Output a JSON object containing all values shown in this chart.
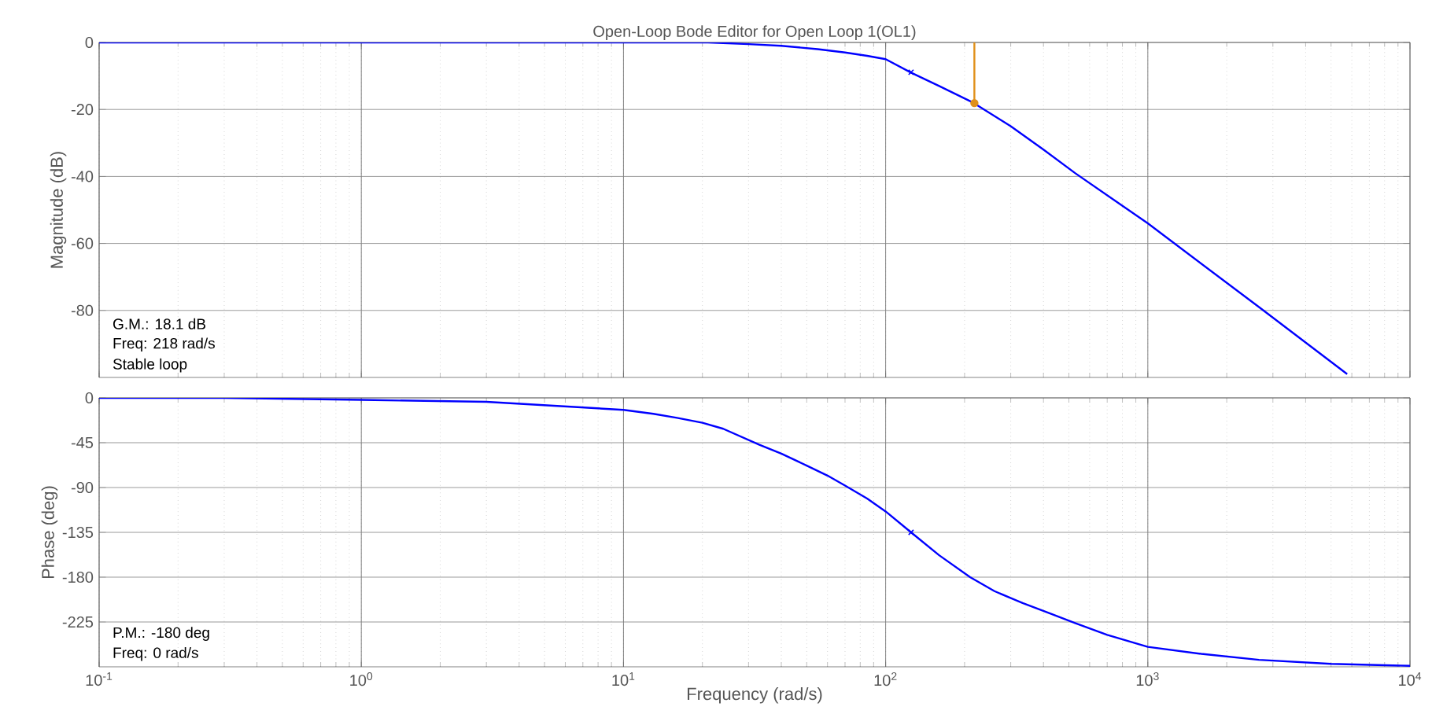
{
  "chart_data": [
    {
      "type": "line",
      "title": "Open-Loop Bode Editor for Open Loop 1(OL1)",
      "ylabel": "Magnitude (dB)",
      "log": "x",
      "grid": true,
      "tick_labels": "y",
      "xlim": [
        0.1,
        10000
      ],
      "ylim": [
        -100,
        0
      ],
      "xticks": [
        {
          "value": 0.1,
          "label": null
        },
        {
          "value": 1,
          "label": null
        },
        {
          "value": 10,
          "label": null
        },
        {
          "value": 100,
          "label": null
        },
        {
          "value": 1000,
          "label": null
        },
        {
          "value": 10000,
          "label": null
        }
      ],
      "yticks": [
        0,
        -20,
        -40,
        -60,
        -80
      ],
      "annotations": [
        "G.M.: 18.1 dB",
        "Freq: 218 rad/s",
        "Stable loop"
      ],
      "series": [
        {
          "color": "#0000ff",
          "x": [
            0.1,
            1,
            5,
            10,
            21,
            30,
            40,
            55,
            70,
            85,
            100,
            125,
            160,
            216,
            300,
            400,
            528,
            1000,
            2655,
            5760
          ],
          "values": [
            0,
            0,
            0,
            0,
            0,
            -0.5,
            -1,
            -2,
            -3,
            -4,
            -5,
            -9,
            -13,
            -18,
            -25,
            -32,
            -39,
            -54,
            -79,
            -99
          ]
        },
        {
          "color": "#e0901a",
          "x": [
            218,
            218
          ],
          "values": [
            0,
            -18.1
          ]
        },
        {
          "type": "scatter",
          "marker": "circle",
          "color": "#e0901a",
          "x": [
            218
          ],
          "values": [
            -18.1
          ]
        },
        {
          "type": "scatter",
          "marker": "cross",
          "color": "#0000ff",
          "x": [
            125
          ],
          "values": [
            -8.9
          ]
        }
      ]
    },
    {
      "type": "line",
      "xlabel": "Frequency (rad/s)",
      "ylabel": "Phase (deg)",
      "log": "x",
      "grid": true,
      "xlim": [
        0.1,
        10000
      ],
      "ylim": [
        -270,
        0
      ],
      "xticks": [
        {
          "value": 0.1,
          "label": "10$^{-1}$"
        },
        {
          "value": 1,
          "label": "10$^{0}$"
        },
        {
          "value": 10,
          "label": "10$^{1}$"
        },
        {
          "value": 100,
          "label": "10$^{2}$"
        },
        {
          "value": 1000,
          "label": "10$^{3}$"
        },
        {
          "value": 10000,
          "label": "10$^{4}$"
        }
      ],
      "yticks": [
        0,
        -45,
        -90,
        -135,
        -180,
        -225
      ],
      "annotations": [
        "P.M.: -180 deg",
        "Freq: 0 rad/s"
      ],
      "series": [
        {
          "color": "#0000ff",
          "x": [
            0.1,
            0.3,
            1,
            3,
            10,
            13,
            16,
            20,
            24,
            33,
            40,
            50,
            60,
            70,
            85,
            100,
            125,
            160,
            210,
            260,
            333,
            420,
            528,
            700,
            1000,
            1600,
            2655,
            5000,
            10000
          ],
          "values": [
            0,
            0,
            -2,
            -4,
            -12,
            -16,
            -20,
            -25,
            -31,
            -47,
            -56,
            -68,
            -78,
            -88,
            -101,
            -114,
            -135,
            -158,
            -180,
            -194,
            -206,
            -216,
            -226,
            -238,
            -250,
            -257,
            -263,
            -267,
            -269
          ]
        },
        {
          "type": "scatter",
          "marker": "cross",
          "color": "#0000ff",
          "x": [
            125
          ],
          "values": [
            -135
          ]
        }
      ]
    }
  ]
}
